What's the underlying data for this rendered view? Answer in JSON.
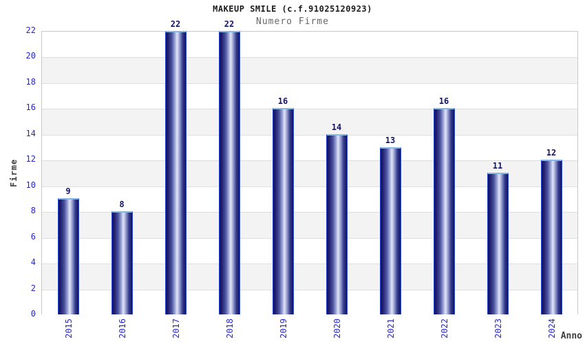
{
  "chart_data": {
    "type": "bar",
    "title": "MAKEUP SMILE (c.f.91025120923)",
    "subtitle": "Numero Firme",
    "xlabel": "Anno",
    "ylabel": "Firme",
    "categories": [
      "2015",
      "2016",
      "2017",
      "2018",
      "2019",
      "2020",
      "2021",
      "2022",
      "2023",
      "2024"
    ],
    "values": [
      9,
      8,
      22,
      22,
      16,
      14,
      13,
      16,
      11,
      12
    ],
    "ylim": [
      0,
      22
    ],
    "ytick_step": 2,
    "yticks": [
      0,
      2,
      4,
      6,
      8,
      10,
      12,
      14,
      16,
      18,
      20,
      22
    ],
    "grid": true,
    "legend": "none",
    "band_fill": "alternating horizontal 2-unit stripes",
    "colors": {
      "background": "#ffffff",
      "title": "#1c1c1c",
      "subtitle": "#666666",
      "axis_tick": "#2626cc",
      "axis_name": "#3d3d3d",
      "value_label": "#15156b",
      "bar_gradient_dark": "#12125e",
      "bar_gradient_light": "#e2e6f5",
      "bar_edge": "#2d4bd2",
      "bar_top_edge": "#85b8e4",
      "band": "#f3f3f3",
      "grid_line": "#dedede",
      "plot_border": "#c9c9c9"
    }
  }
}
